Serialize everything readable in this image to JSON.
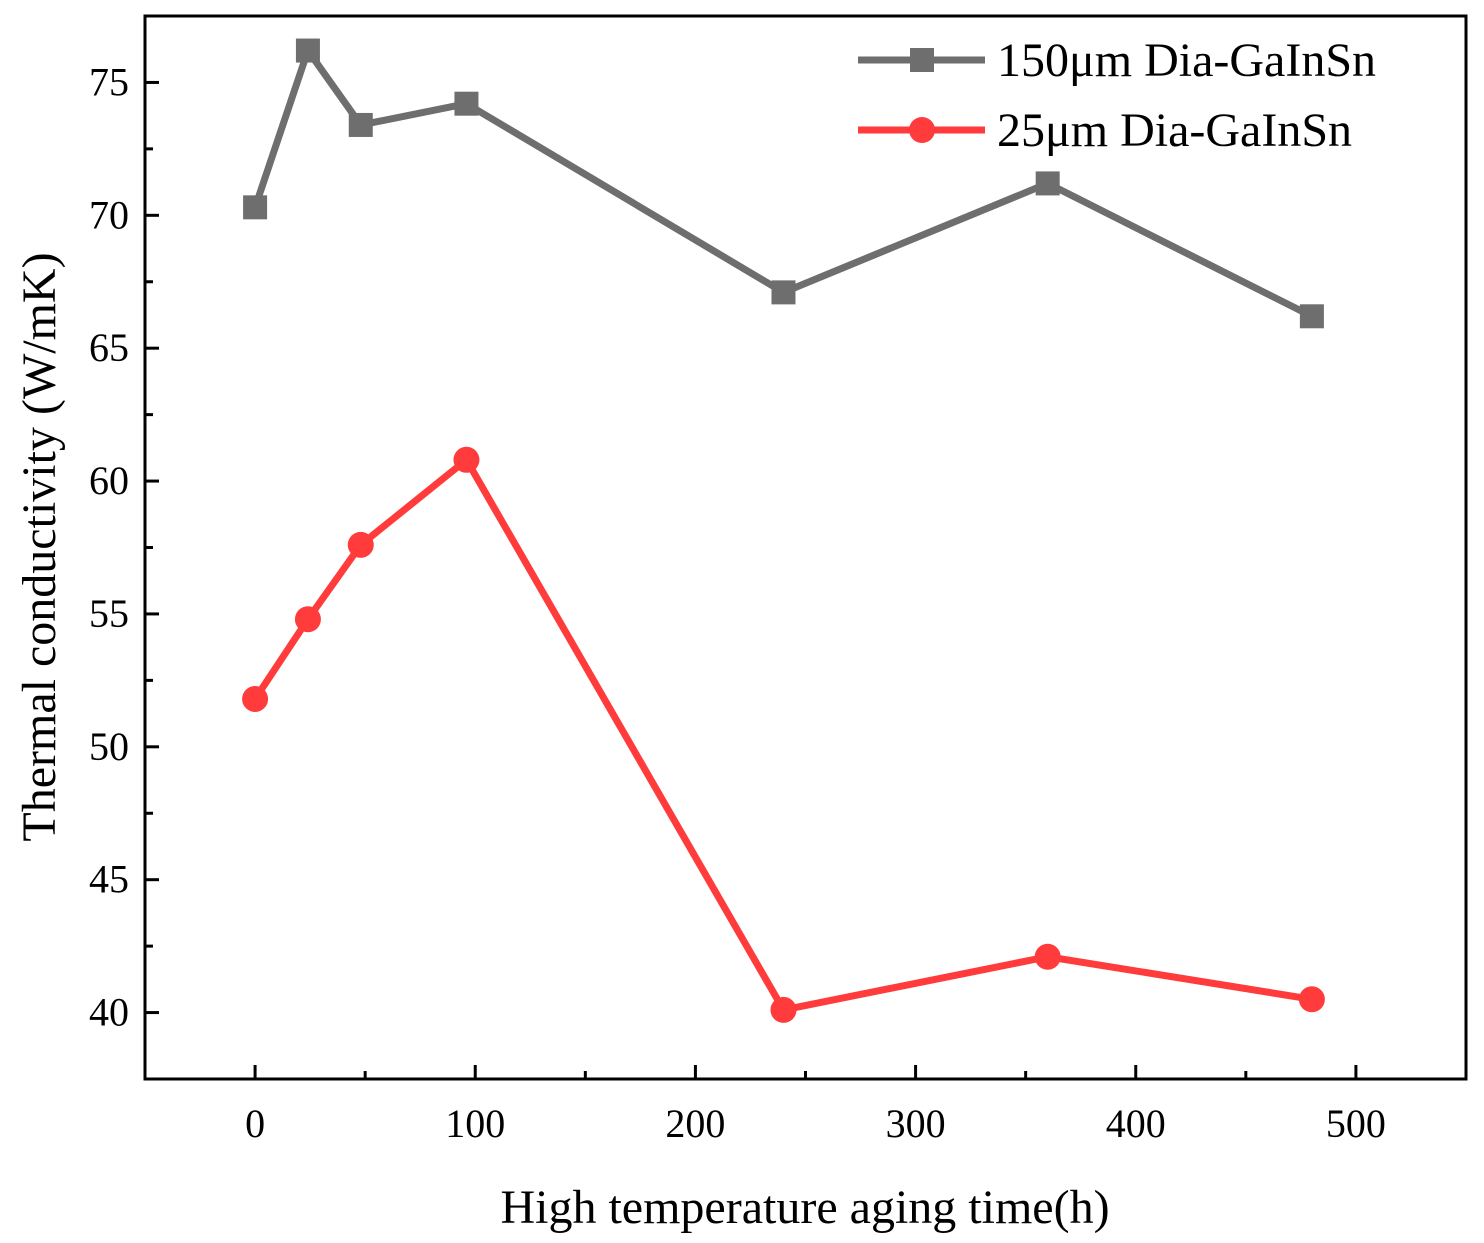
{
  "chart_data": {
    "type": "line",
    "title": "",
    "xlabel": "High temperature aging time(h)",
    "ylabel": "Thermal conductivity (W/mK)",
    "xlim": [
      -50,
      550
    ],
    "ylim": [
      37.5,
      77.5
    ],
    "xticks": [
      0,
      100,
      200,
      300,
      400,
      500
    ],
    "yticks": [
      40,
      45,
      50,
      55,
      60,
      65,
      70,
      75
    ],
    "x": [
      0,
      24,
      48,
      96,
      240,
      360,
      480
    ],
    "grid": false,
    "legend_position": "top-right",
    "series": [
      {
        "name": "150μm  Dia-GaInSn",
        "marker": "square",
        "color": "#6e6e6e",
        "values": [
          70.3,
          76.2,
          73.4,
          74.2,
          67.1,
          71.2,
          66.2
        ]
      },
      {
        "name": "25μm  Dia-GaInSn",
        "marker": "circle",
        "color": "#ff3b3b",
        "values": [
          51.8,
          54.8,
          57.6,
          60.8,
          40.1,
          42.1,
          40.5
        ]
      }
    ]
  }
}
